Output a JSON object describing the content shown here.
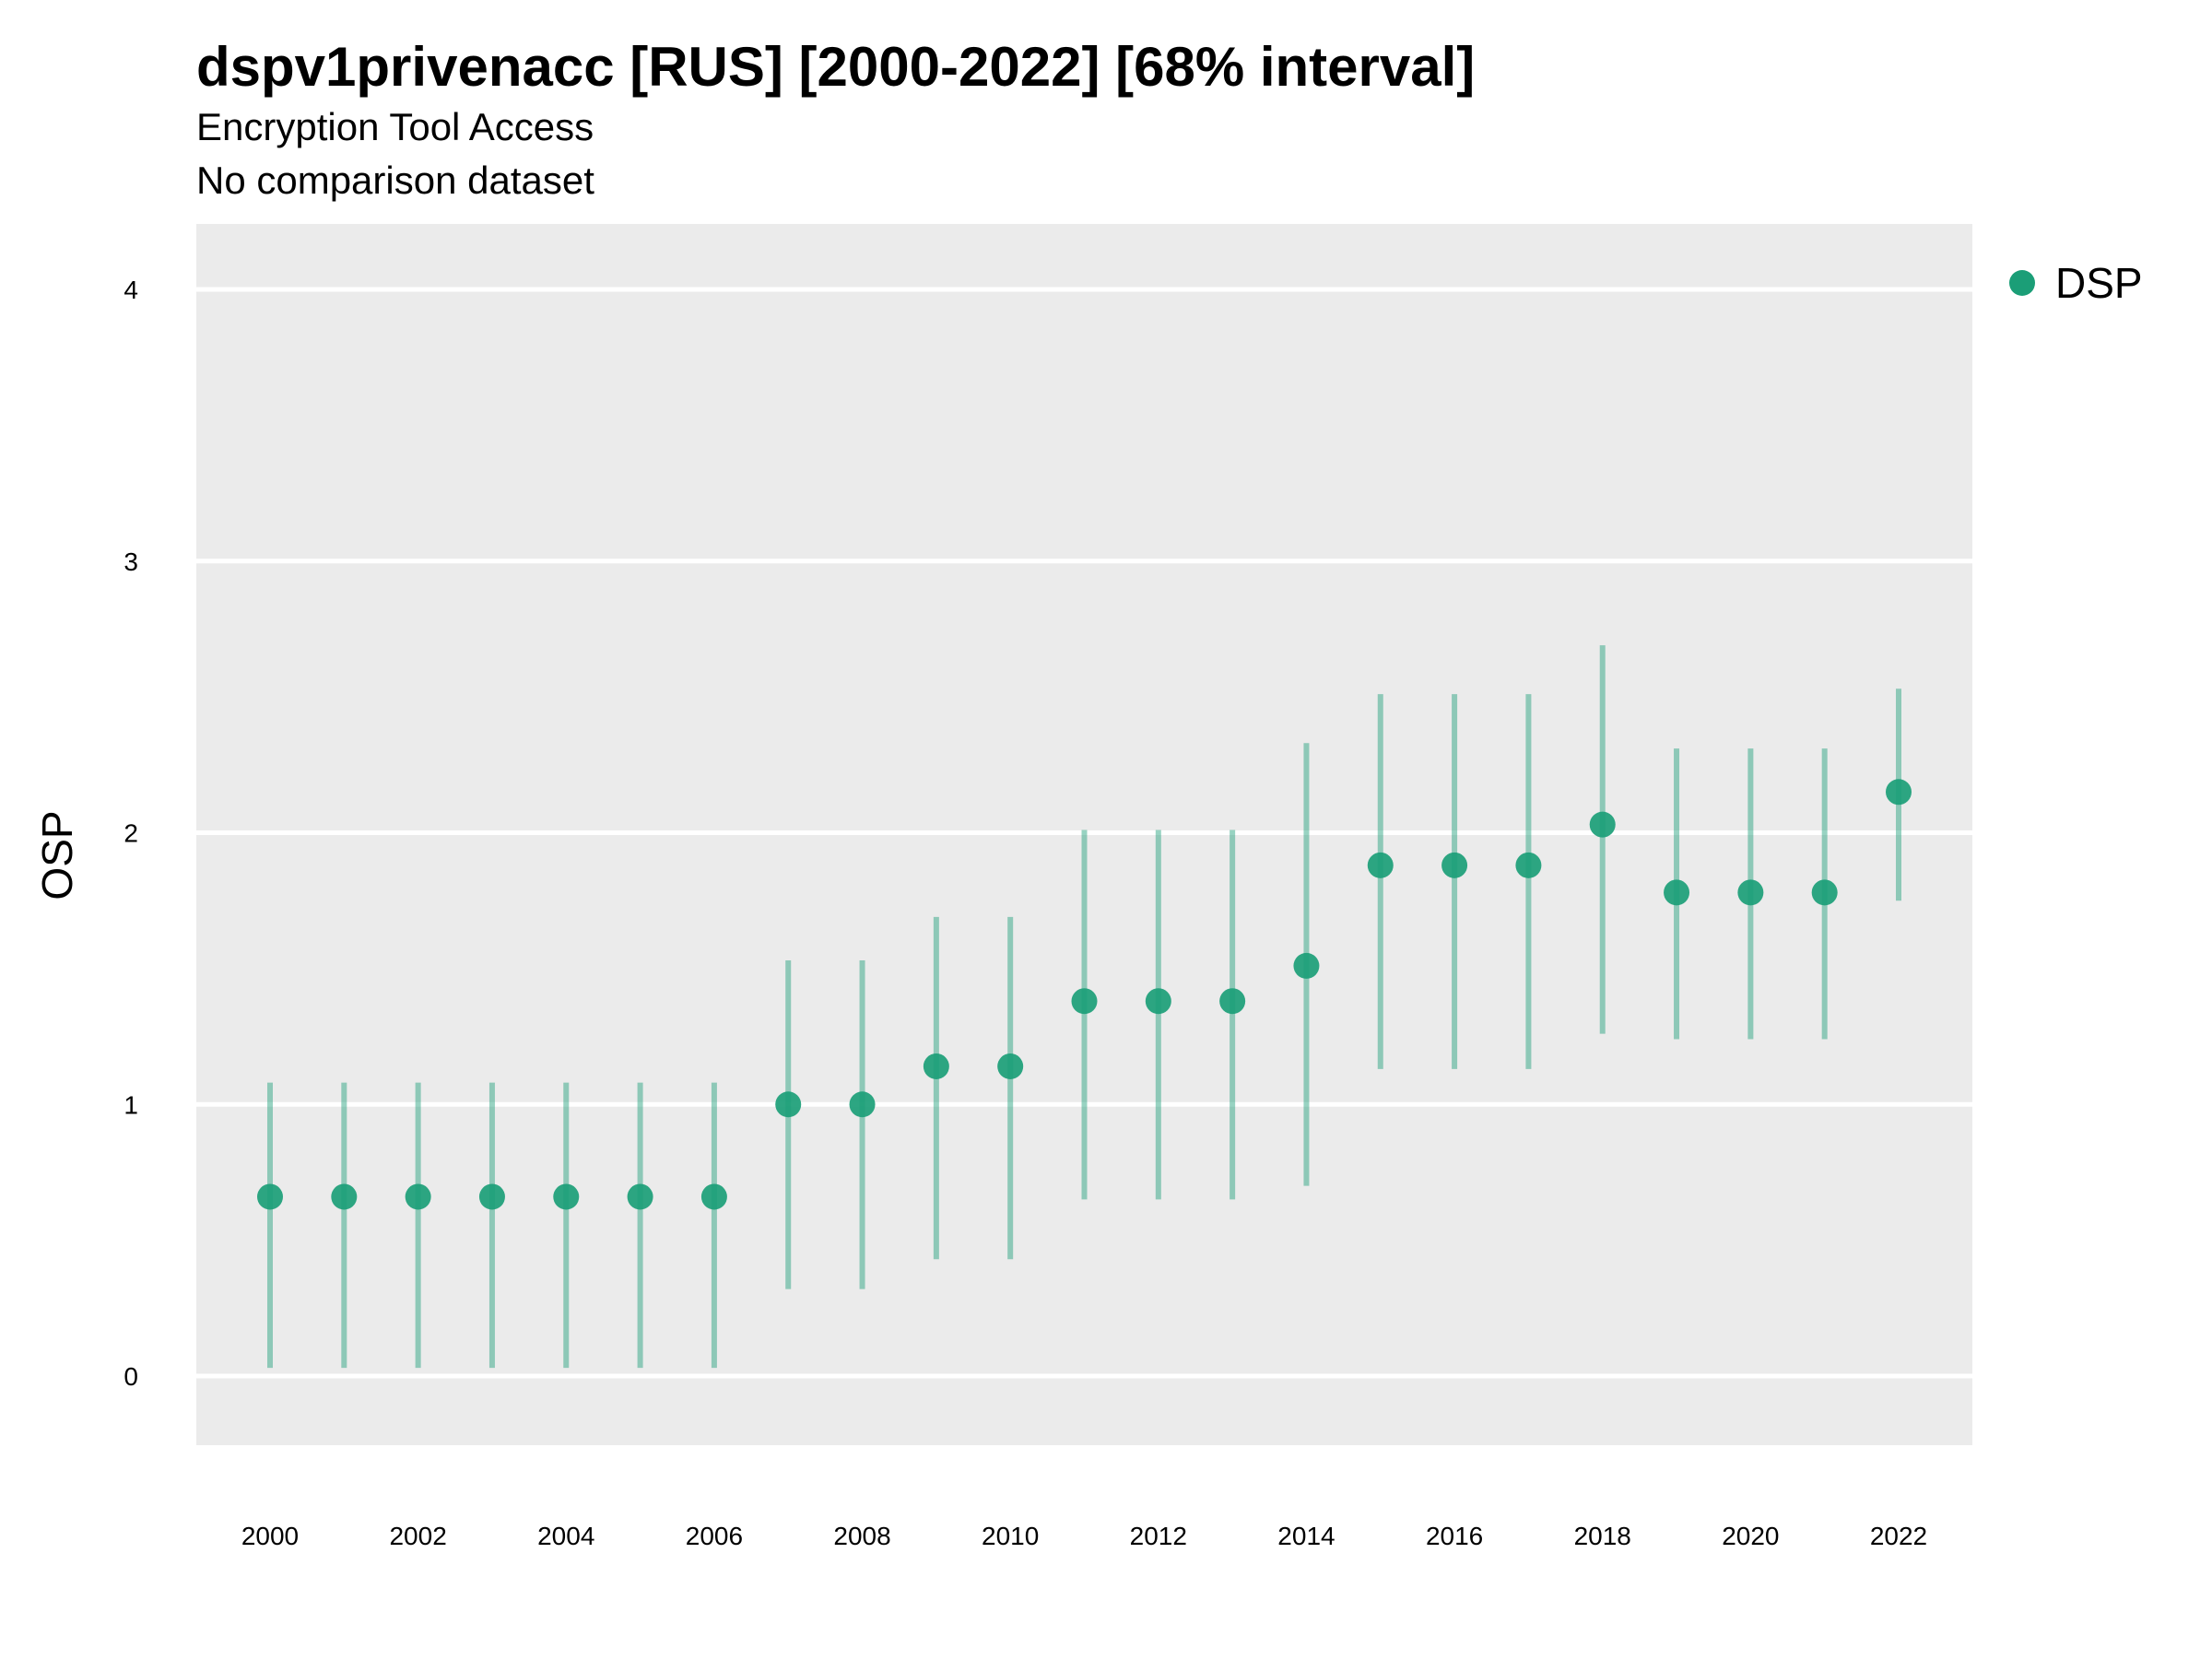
{
  "chart_data": {
    "type": "scatter",
    "title": "dspv1privenacc [RUS] [2000-2022] [68% interval]",
    "subtitle_lines": [
      "Encryption Tool Access",
      "No comparison dataset"
    ],
    "xlabel": "",
    "ylabel": "OSP",
    "ylim": [
      -0.25,
      4.25
    ],
    "yticks": [
      0,
      1,
      2,
      3,
      4
    ],
    "xticks": [
      2000,
      2002,
      2004,
      2006,
      2008,
      2010,
      2012,
      2014,
      2016,
      2018,
      2020,
      2022
    ],
    "xlim": [
      1999,
      2023
    ],
    "grid": true,
    "legend_position": "top-right",
    "series": [
      {
        "name": "DSP",
        "color": "#1b9e77",
        "x": [
          2000,
          2001,
          2002,
          2003,
          2004,
          2005,
          2006,
          2007,
          2008,
          2009,
          2010,
          2011,
          2012,
          2013,
          2014,
          2015,
          2016,
          2017,
          2018,
          2019,
          2020,
          2021,
          2022
        ],
        "y": [
          0.66,
          0.66,
          0.66,
          0.66,
          0.66,
          0.66,
          0.66,
          1.0,
          1.0,
          1.14,
          1.14,
          1.38,
          1.38,
          1.38,
          1.51,
          1.88,
          1.88,
          1.88,
          2.03,
          1.78,
          1.78,
          1.78,
          2.15
        ],
        "lower": [
          0.03,
          0.03,
          0.03,
          0.03,
          0.03,
          0.03,
          0.03,
          0.32,
          0.32,
          0.43,
          0.43,
          0.65,
          0.65,
          0.65,
          0.7,
          1.13,
          1.13,
          1.13,
          1.26,
          1.24,
          1.24,
          1.24,
          1.75
        ],
        "upper": [
          1.08,
          1.08,
          1.08,
          1.08,
          1.08,
          1.08,
          1.08,
          1.53,
          1.53,
          1.69,
          1.69,
          2.01,
          2.01,
          2.01,
          2.33,
          2.51,
          2.51,
          2.51,
          2.69,
          2.31,
          2.31,
          2.31,
          2.53
        ]
      }
    ]
  }
}
